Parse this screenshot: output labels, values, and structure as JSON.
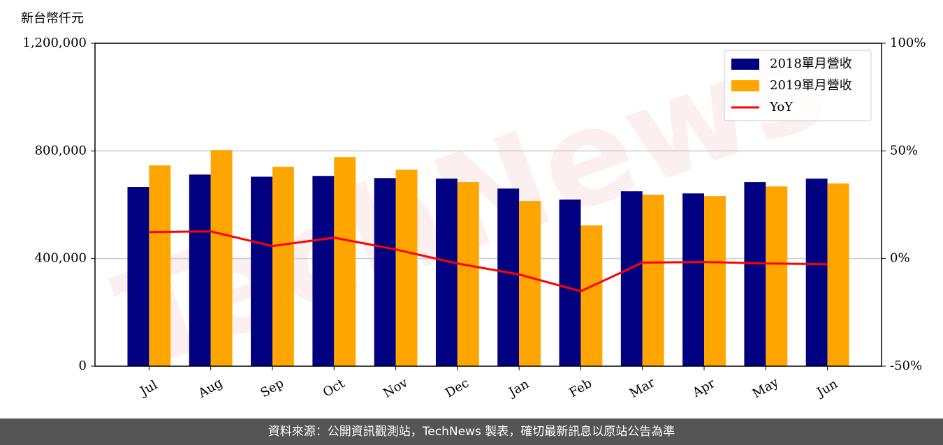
{
  "chart_data": {
    "type": "bar",
    "y_label": "新台幣仟元",
    "categories": [
      "Jul",
      "Aug",
      "Sep",
      "Oct",
      "Nov",
      "Dec",
      "Jan",
      "Feb",
      "Mar",
      "Apr",
      "May",
      "Jun"
    ],
    "series": [
      {
        "name": "2018單月營收",
        "color": "#000080",
        "values": [
          666000,
          712000,
          704000,
          707000,
          699000,
          697000,
          660000,
          619000,
          650000,
          642000,
          684000,
          697000
        ]
      },
      {
        "name": "2019單月營收",
        "color": "#ffa500",
        "values": [
          746000,
          803000,
          741000,
          777000,
          730000,
          684000,
          614000,
          523000,
          637000,
          632000,
          668000,
          679000
        ]
      },
      {
        "name": "YoY",
        "color": "#ff0000",
        "type": "line",
        "axis": "y2",
        "values": [
          12.3,
          12.6,
          5.8,
          9.7,
          4.2,
          -2.3,
          -7.4,
          -15.2,
          -1.9,
          -1.6,
          -2.3,
          -2.6
        ]
      }
    ],
    "ylim": [
      0,
      1200000
    ],
    "yticks": [
      0,
      {
        "value": 400000,
        "label": "400,000"
      },
      {
        "value": 800000,
        "label": "800,000"
      },
      {
        "value": 1200000,
        "label": "1,200,000"
      }
    ],
    "y2lim": [
      -50,
      100
    ],
    "y2ticks": [
      {
        "value": -50,
        "label": "-50%"
      },
      {
        "value": 0,
        "label": "0%"
      },
      {
        "value": 50,
        "label": "50%"
      },
      {
        "value": 100,
        "label": "100%"
      }
    ],
    "grid": true,
    "legend": "upper right",
    "watermark": "TechNews"
  },
  "footer": "資料來源：公開資訊觀測站，TechNews 製表，確切最新訊息以原站公告為準"
}
